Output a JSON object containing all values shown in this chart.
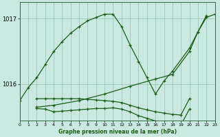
{
  "bg_color": "#c8e8e0",
  "line_color": "#1a5c1a",
  "xlabel": "Graphe pression niveau de la mer (hPa)",
  "xlim": [
    0,
    23
  ],
  "ylim": [
    1015.45,
    1017.25
  ],
  "yticks": [
    1016,
    1017
  ],
  "xtick_labels": [
    "0",
    "1",
    "2",
    "3",
    "4",
    "5",
    "6",
    "7",
    "8",
    "9",
    "10",
    "11",
    "12",
    "13",
    "14",
    "15",
    "16",
    "17",
    "18",
    "19",
    "20",
    "21",
    "22",
    "23"
  ],
  "series": [
    {
      "x": [
        0,
        1,
        2,
        3,
        4,
        5,
        6,
        7,
        8,
        9,
        10,
        11,
        12,
        13,
        14,
        15,
        16,
        17,
        18,
        20,
        21,
        22,
        23
      ],
      "y": [
        1015.75,
        1015.95,
        1016.1,
        1016.3,
        1016.5,
        1016.65,
        1016.78,
        1016.88,
        1016.97,
        1017.02,
        1017.07,
        1017.07,
        1016.88,
        1016.6,
        1016.35,
        1016.1,
        1015.85,
        1016.05,
        1016.2,
        1016.55,
        1016.8,
        1017.02,
        1017.07
      ]
    },
    {
      "x": [
        2,
        4,
        7,
        10,
        13,
        16,
        18,
        20,
        21,
        22
      ],
      "y": [
        1015.65,
        1015.68,
        1015.75,
        1015.85,
        1015.97,
        1016.08,
        1016.15,
        1016.5,
        1016.8,
        1017.05
      ]
    },
    {
      "x": [
        2,
        3,
        4,
        5,
        6,
        7,
        8,
        9,
        10,
        11,
        12,
        13,
        14,
        15,
        16,
        17,
        18,
        19,
        20
      ],
      "y": [
        1015.78,
        1015.78,
        1015.78,
        1015.78,
        1015.78,
        1015.78,
        1015.77,
        1015.76,
        1015.75,
        1015.74,
        1015.72,
        1015.68,
        1015.64,
        1015.61,
        1015.58,
        1015.56,
        1015.54,
        1015.53,
        1015.78
      ]
    },
    {
      "x": [
        2,
        3,
        4,
        5,
        6,
        7,
        8,
        9,
        10,
        11,
        12,
        13,
        14,
        15,
        16,
        17,
        18,
        19,
        20
      ],
      "y": [
        1015.63,
        1015.62,
        1015.58,
        1015.59,
        1015.6,
        1015.61,
        1015.62,
        1015.63,
        1015.63,
        1015.64,
        1015.62,
        1015.58,
        1015.52,
        1015.48,
        1015.44,
        1015.42,
        1015.4,
        1015.38,
        1015.62
      ]
    }
  ]
}
